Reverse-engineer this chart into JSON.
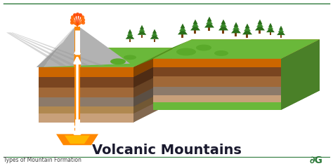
{
  "title": "Volcanic Mountains",
  "footer_left": "Types of Mountain Formation",
  "bg_color": "#ffffff",
  "title_color": "#1a1a2e",
  "footer_color": "#2d7a3a",
  "border_color": "#2d7a3a",
  "title_fontsize": 14,
  "footer_fontsize": 5.5,
  "logo_fontsize": 10,
  "grass_color": "#6ab83a",
  "grass_dark": "#4a9a20",
  "grass_hill": "#5aaa2a",
  "lava_color": "#ff8800",
  "magma_color": "#ff6600",
  "arrow_color": "#ffffff",
  "tree_green": "#2a6e1a",
  "tree_mid": "#3a8a2a",
  "tree_trunk": "#7a4010",
  "volcano_gray": "#aaaaaa",
  "volcano_dark": "#888888",
  "volcano_ash": "#bbbbbb",
  "eruption_color": "#ff4400",
  "layers_left": [
    [
      "#c8a07a",
      9
    ],
    [
      "#b08850",
      7
    ],
    [
      "#8c7a6a",
      9
    ],
    [
      "#a06838",
      10
    ],
    [
      "#7a4520",
      11
    ],
    [
      "#cc6600",
      10
    ]
  ],
  "layers_right": [
    [
      "#6ab83a",
      9
    ],
    [
      "#c8a07a",
      8
    ],
    [
      "#8c7a6a",
      10
    ],
    [
      "#a06838",
      12
    ],
    [
      "#7a4520",
      11
    ],
    [
      "#cc6600",
      10
    ]
  ],
  "fault_color": "#7a5030",
  "side_shade": 0.65
}
